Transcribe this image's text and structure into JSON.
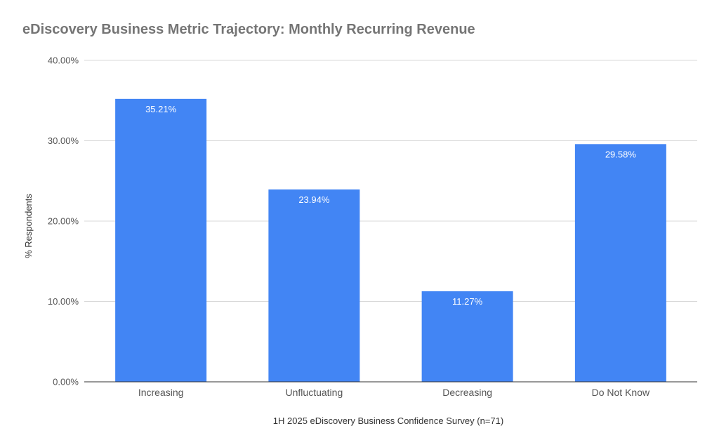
{
  "chart_data": {
    "type": "bar",
    "title": "eDiscovery Business Metric Trajectory: Monthly Recurring Revenue",
    "xlabel": "1H 2025 eDiscovery Business Confidence Survey (n=71)",
    "ylabel": "% Respondents",
    "categories": [
      "Increasing",
      "Unfluctuating",
      "Decreasing",
      "Do Not Know"
    ],
    "values": [
      35.21,
      23.94,
      11.27,
      29.58
    ],
    "data_labels": [
      "35.21%",
      "23.94%",
      "11.27%",
      "29.58%"
    ],
    "ylim": [
      0,
      40
    ],
    "yticks": [
      0,
      10,
      20,
      30,
      40
    ],
    "ytick_labels": [
      "0.00%",
      "10.00%",
      "20.00%",
      "30.00%",
      "40.00%"
    ],
    "grid": true,
    "legend": "none",
    "bar_color": "#4285f4",
    "gridline_color": "#d9d9d9",
    "axis_color": "#333333"
  }
}
